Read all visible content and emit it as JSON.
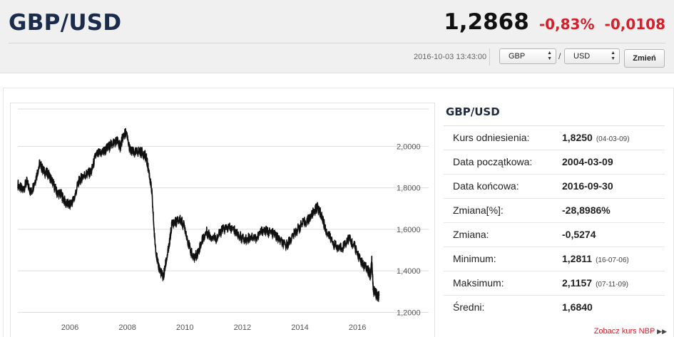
{
  "header": {
    "pair": "GBP/USD",
    "rate": "1,2868",
    "change_pct": "-0,83%",
    "change_abs": "-0,0108",
    "timestamp": "2016-10-03 13:43:00",
    "from_currency": "GBP",
    "to_currency": "USD",
    "separator": "/",
    "submit_label": "Zmień",
    "colors": {
      "title": "#1a2b4c",
      "negative": "#d4202a"
    }
  },
  "stats": {
    "title": "GBP/USD",
    "rows": [
      {
        "label": "Kurs odniesienia:",
        "value": "1,8250",
        "date": "(04-03-09)"
      },
      {
        "label": "Data początkowa:",
        "value": "2004-03-09",
        "date": ""
      },
      {
        "label": "Data końcowa:",
        "value": "2016-09-30",
        "date": ""
      },
      {
        "label": "Zmiana[%]:",
        "value": "-28,8986%",
        "date": ""
      },
      {
        "label": "Zmiana:",
        "value": "-0,5274",
        "date": ""
      },
      {
        "label": "Minimum:",
        "value": "1,2811",
        "date": "(16-07-06)"
      },
      {
        "label": "Maksimum:",
        "value": "2,1157",
        "date": "(07-11-09)"
      },
      {
        "label": "Średni:",
        "value": "1,6840",
        "date": ""
      }
    ],
    "link": "Zobacz kurs NBP",
    "link_icon": "double-chevron-right-icon"
  },
  "chart_data": {
    "type": "line",
    "title": "",
    "xlabel": "",
    "ylabel": "",
    "x_ticks": [
      "2006",
      "2008",
      "2010",
      "2012",
      "2014",
      "2016"
    ],
    "y_ticks": [
      "1,2000",
      "1,4000",
      "1,6000",
      "1,8000",
      "2,0000"
    ],
    "xlim": [
      2004.19,
      2016.84
    ],
    "ylim": [
      1.16,
      2.18
    ],
    "grid": "horizontal",
    "line_color": "#111111",
    "series": [
      {
        "x": [
          2004.19,
          2004.35,
          2004.5,
          2004.65,
          2004.8,
          2004.95,
          2005.1,
          2005.25,
          2005.4,
          2005.55,
          2005.7,
          2005.85,
          2006.0,
          2006.15,
          2006.3,
          2006.45,
          2006.6,
          2006.75,
          2006.9,
          2007.05,
          2007.2,
          2007.35,
          2007.5,
          2007.65,
          2007.75,
          2007.85,
          2007.95,
          2008.1,
          2008.25,
          2008.4,
          2008.55,
          2008.65,
          2008.75,
          2008.85,
          2008.95,
          2009.05,
          2009.15,
          2009.25,
          2009.35,
          2009.45,
          2009.55,
          2009.7,
          2009.85,
          2010.0,
          2010.15,
          2010.3,
          2010.45,
          2010.6,
          2010.75,
          2010.9,
          2011.1,
          2011.3,
          2011.5,
          2011.7,
          2011.9,
          2012.1,
          2012.3,
          2012.5,
          2012.7,
          2012.9,
          2013.1,
          2013.3,
          2013.5,
          2013.7,
          2013.9,
          2014.1,
          2014.3,
          2014.5,
          2014.6,
          2014.75,
          2014.9,
          2015.1,
          2015.3,
          2015.5,
          2015.7,
          2015.9,
          2016.05,
          2016.2,
          2016.35,
          2016.45,
          2016.5,
          2016.55,
          2016.65,
          2016.75
        ],
        "y": [
          1.82,
          1.79,
          1.83,
          1.78,
          1.84,
          1.92,
          1.88,
          1.87,
          1.83,
          1.78,
          1.77,
          1.73,
          1.72,
          1.75,
          1.83,
          1.86,
          1.87,
          1.88,
          1.96,
          1.97,
          1.98,
          2.0,
          2.02,
          2.03,
          2.0,
          2.05,
          2.07,
          1.98,
          1.97,
          1.98,
          1.97,
          1.95,
          1.88,
          1.78,
          1.55,
          1.44,
          1.4,
          1.37,
          1.45,
          1.52,
          1.63,
          1.64,
          1.65,
          1.61,
          1.52,
          1.46,
          1.49,
          1.55,
          1.59,
          1.57,
          1.56,
          1.6,
          1.61,
          1.6,
          1.57,
          1.55,
          1.57,
          1.56,
          1.6,
          1.59,
          1.58,
          1.55,
          1.52,
          1.56,
          1.6,
          1.63,
          1.65,
          1.69,
          1.71,
          1.67,
          1.6,
          1.55,
          1.51,
          1.52,
          1.56,
          1.52,
          1.47,
          1.43,
          1.41,
          1.38,
          1.45,
          1.31,
          1.29,
          1.28
        ]
      }
    ]
  }
}
